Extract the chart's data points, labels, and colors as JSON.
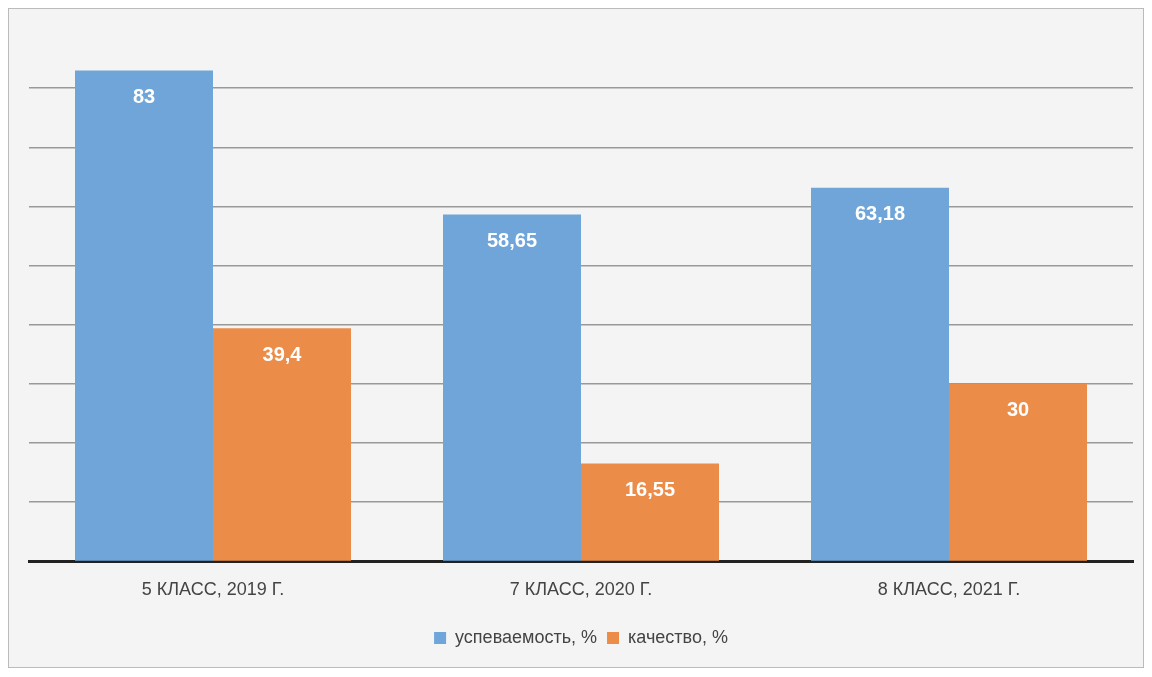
{
  "chart_data": {
    "type": "bar",
    "categories": [
      "5 КЛАСС, 2019 Г.",
      "7 КЛАСС, 2020 Г.",
      "8 КЛАСС, 2021 Г."
    ],
    "series": [
      {
        "name": "успеваемость, %",
        "color": "#6fa5d8",
        "values": [
          83,
          58.65,
          63.18
        ],
        "value_labels": [
          "83",
          "58,65",
          "63,18"
        ]
      },
      {
        "name": "качество, %",
        "color": "#ec8c49",
        "values": [
          39.4,
          16.55,
          30
        ],
        "value_labels": [
          "39,4",
          "16,55",
          "30"
        ]
      }
    ],
    "yticks": [
      {
        "value": 0,
        "label": null
      },
      {
        "value": 10,
        "label": null
      },
      {
        "value": 20,
        "label": null
      },
      {
        "value": 30,
        "label": null
      },
      {
        "value": 40,
        "label": null
      },
      {
        "value": 50,
        "label": null
      },
      {
        "value": 60,
        "label": null
      },
      {
        "value": 70,
        "label": null
      },
      {
        "value": 80,
        "label": null
      }
    ],
    "tick_labels": "x",
    "grid": "y",
    "legend": "bottom"
  }
}
